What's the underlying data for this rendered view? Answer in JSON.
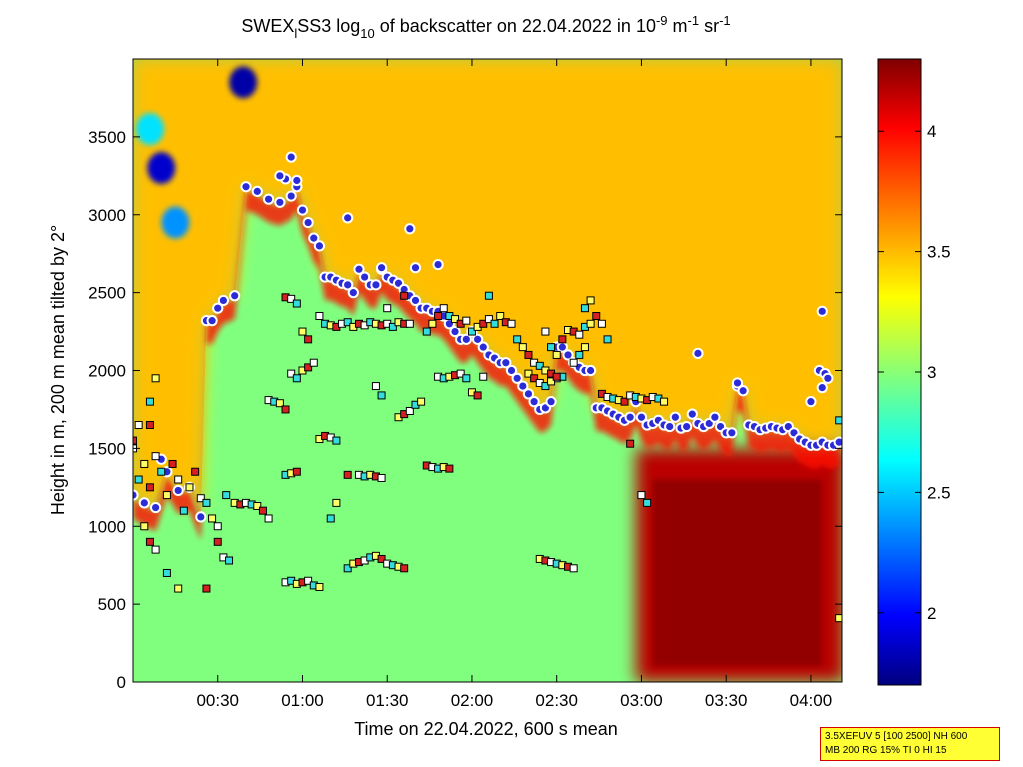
{
  "title": {
    "prefix": "SWEX",
    "sub_l": "l",
    "mid": "SS3 log",
    "sub_10": "10",
    "text": " of backscatter on 22.04.2022 in 10",
    "sup_exp": "-9",
    "unit_m": " m",
    "sup_m": "-1",
    "unit_sr": " sr",
    "sup_sr": "-1"
  },
  "info_box": {
    "line1": "3.5XEFUV 5 [100 2500] NH 600",
    "line2": "MB 200 RG 15% TI 0 HI 15"
  },
  "chart_data": {
    "type": "heatmap",
    "xlabel": "Time on 22.04.2022, 600 s mean",
    "ylabel": "Height in m, 200 m mean tilted by 2°",
    "x_ticks": [
      "00:30",
      "01:00",
      "01:30",
      "02:00",
      "02:30",
      "03:00",
      "03:30",
      "04:00"
    ],
    "x_tick_minutes": [
      30,
      60,
      90,
      120,
      150,
      180,
      210,
      240
    ],
    "xlim_minutes": [
      0,
      251
    ],
    "y_ticks": [
      "0",
      "500",
      "1000",
      "1500",
      "2000",
      "2500",
      "3000",
      "3500"
    ],
    "y_tick_values": [
      0,
      500,
      1000,
      1500,
      2000,
      2500,
      3000,
      3500
    ],
    "ylim": [
      0,
      4000
    ],
    "colorbar": {
      "ticks": [
        "2",
        "2.5",
        "3",
        "3.5",
        "4"
      ],
      "tick_values": [
        2,
        2.5,
        3,
        3.5,
        4
      ],
      "range": [
        1.7,
        4.3
      ],
      "colormap": "jet"
    },
    "marker_colors": {
      "layer_fill": "#2b2bd8",
      "layer_edge": "#ffffff",
      "square_fill": [
        "#ffffff",
        "#33dddd",
        "#ffff66",
        "#d42020"
      ],
      "square_edge": "#000000"
    },
    "features": {
      "background_level": 3.0,
      "upper_level": 3.4,
      "red_region": {
        "minutes": [
          178,
          252
        ],
        "height": [
          0,
          1500
        ],
        "level": 4.15
      },
      "blue_patches": [
        {
          "minutes": 10,
          "height": 3300,
          "level": 1.9
        },
        {
          "minutes": 39,
          "height": 3850,
          "level": 1.8
        },
        {
          "minutes": 15,
          "height": 2950,
          "level": 2.4
        },
        {
          "minutes": 6,
          "height": 3550,
          "level": 2.6
        }
      ]
    },
    "layer_series": [
      [
        0,
        1200
      ],
      [
        4,
        1150
      ],
      [
        8,
        1120
      ],
      [
        12,
        1350
      ],
      [
        16,
        1230
      ],
      [
        20,
        1250
      ],
      [
        24,
        1060
      ],
      [
        26,
        2320
      ],
      [
        28,
        2320
      ],
      [
        30,
        2400
      ],
      [
        32,
        2450
      ],
      [
        36,
        2480
      ],
      [
        40,
        3180
      ],
      [
        44,
        3150
      ],
      [
        48,
        3100
      ],
      [
        52,
        3080
      ],
      [
        56,
        3120
      ],
      [
        58,
        3180
      ],
      [
        60,
        3030
      ],
      [
        62,
        2950
      ],
      [
        64,
        2850
      ],
      [
        66,
        2800
      ],
      [
        68,
        2600
      ],
      [
        70,
        2600
      ],
      [
        72,
        2580
      ],
      [
        74,
        2560
      ],
      [
        76,
        2550
      ],
      [
        78,
        2500
      ],
      [
        80,
        2650
      ],
      [
        82,
        2600
      ],
      [
        84,
        2550
      ],
      [
        86,
        2550
      ],
      [
        88,
        2650
      ],
      [
        90,
        2600
      ],
      [
        92,
        2580
      ],
      [
        94,
        2560
      ],
      [
        96,
        2520
      ],
      [
        98,
        2480
      ],
      [
        100,
        2450
      ],
      [
        102,
        2400
      ],
      [
        104,
        2400
      ],
      [
        106,
        2380
      ],
      [
        108,
        2380
      ],
      [
        110,
        2350
      ],
      [
        112,
        2300
      ],
      [
        114,
        2250
      ],
      [
        116,
        2200
      ],
      [
        118,
        2200
      ],
      [
        120,
        2250
      ],
      [
        122,
        2200
      ],
      [
        124,
        2150
      ],
      [
        126,
        2100
      ],
      [
        128,
        2080
      ],
      [
        130,
        2050
      ],
      [
        132,
        2050
      ],
      [
        134,
        2000
      ],
      [
        136,
        1950
      ],
      [
        138,
        1900
      ],
      [
        140,
        1850
      ],
      [
        142,
        1800
      ],
      [
        144,
        1750
      ],
      [
        146,
        1760
      ],
      [
        148,
        1800
      ],
      [
        150,
        2150
      ],
      [
        152,
        2150
      ],
      [
        154,
        2100
      ],
      [
        156,
        2050
      ],
      [
        158,
        2020
      ],
      [
        160,
        2000
      ],
      [
        162,
        2000
      ],
      [
        164,
        1760
      ],
      [
        166,
        1760
      ],
      [
        168,
        1740
      ],
      [
        170,
        1720
      ],
      [
        172,
        1700
      ],
      [
        174,
        1680
      ],
      [
        176,
        1700
      ],
      [
        178,
        1800
      ],
      [
        180,
        1700
      ],
      [
        182,
        1650
      ],
      [
        184,
        1660
      ],
      [
        186,
        1680
      ],
      [
        188,
        1650
      ],
      [
        190,
        1640
      ],
      [
        192,
        1700
      ],
      [
        194,
        1630
      ],
      [
        196,
        1640
      ],
      [
        198,
        1720
      ],
      [
        200,
        1660
      ],
      [
        202,
        1640
      ],
      [
        204,
        1660
      ],
      [
        206,
        1700
      ],
      [
        208,
        1640
      ],
      [
        210,
        1600
      ],
      [
        212,
        1600
      ],
      [
        214,
        1900
      ],
      [
        216,
        1870
      ],
      [
        218,
        1650
      ],
      [
        220,
        1640
      ],
      [
        222,
        1620
      ],
      [
        224,
        1630
      ],
      [
        226,
        1640
      ],
      [
        228,
        1630
      ],
      [
        230,
        1620
      ],
      [
        232,
        1640
      ],
      [
        234,
        1600
      ],
      [
        236,
        1560
      ],
      [
        238,
        1540
      ],
      [
        240,
        1520
      ],
      [
        242,
        1520
      ],
      [
        244,
        1540
      ],
      [
        246,
        1520
      ],
      [
        248,
        1520
      ],
      [
        250,
        1540
      ]
    ],
    "extra_layer_points": [
      [
        56,
        3370
      ],
      [
        54,
        3230
      ],
      [
        52,
        3250
      ],
      [
        58,
        3220
      ],
      [
        76,
        2980
      ],
      [
        98,
        2910
      ],
      [
        88,
        2660
      ],
      [
        100,
        2660
      ],
      [
        108,
        2680
      ],
      [
        244,
        2380
      ],
      [
        243,
        2000
      ],
      [
        245,
        1980
      ],
      [
        240,
        1800
      ],
      [
        244,
        1890
      ],
      [
        246,
        1950
      ],
      [
        200,
        2110
      ],
      [
        214,
        1920
      ],
      [
        10,
        1430
      ]
    ],
    "square_points": [
      [
        0,
        1500
      ],
      [
        2,
        1300
      ],
      [
        4,
        1400
      ],
      [
        6,
        1250
      ],
      [
        8,
        1450
      ],
      [
        10,
        1350
      ],
      [
        12,
        1200
      ],
      [
        14,
        1400
      ],
      [
        16,
        1300
      ],
      [
        18,
        1100
      ],
      [
        20,
        1250
      ],
      [
        22,
        1350
      ],
      [
        24,
        1180
      ],
      [
        26,
        1150
      ],
      [
        28,
        1050
      ],
      [
        30,
        900
      ],
      [
        32,
        800
      ],
      [
        34,
        780
      ],
      [
        4,
        1000
      ],
      [
        6,
        900
      ],
      [
        8,
        850
      ],
      [
        12,
        700
      ],
      [
        16,
        600
      ],
      [
        26,
        600
      ],
      [
        30,
        1000
      ],
      [
        33,
        1200
      ],
      [
        36,
        1150
      ],
      [
        38,
        1140
      ],
      [
        40,
        1150
      ],
      [
        42,
        1140
      ],
      [
        44,
        1130
      ],
      [
        46,
        1100
      ],
      [
        48,
        1050
      ],
      [
        6,
        1800
      ],
      [
        8,
        1950
      ],
      [
        6,
        1650
      ],
      [
        48,
        1810
      ],
      [
        50,
        1800
      ],
      [
        52,
        1790
      ],
      [
        54,
        1750
      ],
      [
        56,
        1980
      ],
      [
        58,
        1950
      ],
      [
        60,
        2000
      ],
      [
        62,
        2020
      ],
      [
        64,
        2050
      ],
      [
        54,
        1330
      ],
      [
        56,
        1340
      ],
      [
        58,
        1350
      ],
      [
        54,
        640
      ],
      [
        56,
        650
      ],
      [
        58,
        630
      ],
      [
        60,
        640
      ],
      [
        62,
        650
      ],
      [
        64,
        620
      ],
      [
        66,
        610
      ],
      [
        54,
        2470
      ],
      [
        56,
        2460
      ],
      [
        58,
        2430
      ],
      [
        66,
        1560
      ],
      [
        68,
        1580
      ],
      [
        70,
        1570
      ],
      [
        72,
        1550
      ],
      [
        60,
        2250
      ],
      [
        62,
        2200
      ],
      [
        66,
        2350
      ],
      [
        68,
        2300
      ],
      [
        70,
        2290
      ],
      [
        72,
        2280
      ],
      [
        74,
        2300
      ],
      [
        76,
        2310
      ],
      [
        78,
        2280
      ],
      [
        80,
        2300
      ],
      [
        82,
        2290
      ],
      [
        84,
        2310
      ],
      [
        86,
        2300
      ],
      [
        88,
        2290
      ],
      [
        90,
        2300
      ],
      [
        92,
        2280
      ],
      [
        94,
        2310
      ],
      [
        96,
        2300
      ],
      [
        98,
        2300
      ],
      [
        70,
        1050
      ],
      [
        72,
        1150
      ],
      [
        76,
        1330
      ],
      [
        80,
        1330
      ],
      [
        82,
        1320
      ],
      [
        84,
        1330
      ],
      [
        86,
        1320
      ],
      [
        88,
        1310
      ],
      [
        76,
        730
      ],
      [
        78,
        760
      ],
      [
        80,
        770
      ],
      [
        82,
        780
      ],
      [
        84,
        800
      ],
      [
        86,
        810
      ],
      [
        88,
        790
      ],
      [
        90,
        760
      ],
      [
        92,
        750
      ],
      [
        94,
        740
      ],
      [
        96,
        730
      ],
      [
        86,
        1900
      ],
      [
        88,
        1840
      ],
      [
        94,
        1700
      ],
      [
        96,
        1720
      ],
      [
        98,
        1740
      ],
      [
        100,
        1780
      ],
      [
        102,
        1800
      ],
      [
        104,
        1390
      ],
      [
        106,
        1380
      ],
      [
        108,
        1370
      ],
      [
        110,
        1380
      ],
      [
        112,
        1370
      ],
      [
        108,
        1960
      ],
      [
        110,
        1950
      ],
      [
        112,
        1960
      ],
      [
        114,
        1970
      ],
      [
        116,
        1980
      ],
      [
        118,
        1950
      ],
      [
        120,
        1860
      ],
      [
        122,
        1840
      ],
      [
        124,
        1960
      ],
      [
        104,
        2250
      ],
      [
        106,
        2300
      ],
      [
        108,
        2350
      ],
      [
        110,
        2400
      ],
      [
        112,
        2350
      ],
      [
        114,
        2330
      ],
      [
        116,
        2300
      ],
      [
        118,
        2320
      ],
      [
        120,
        2250
      ],
      [
        122,
        2280
      ],
      [
        124,
        2300
      ],
      [
        126,
        2330
      ],
      [
        128,
        2300
      ],
      [
        130,
        2350
      ],
      [
        132,
        2310
      ],
      [
        134,
        2300
      ],
      [
        136,
        2200
      ],
      [
        138,
        2150
      ],
      [
        140,
        2100
      ],
      [
        142,
        2050
      ],
      [
        144,
        2030
      ],
      [
        146,
        2000
      ],
      [
        148,
        1980
      ],
      [
        150,
        1950
      ],
      [
        152,
        1960
      ],
      [
        154,
        2260
      ],
      [
        156,
        2250
      ],
      [
        158,
        2230
      ],
      [
        160,
        2280
      ],
      [
        162,
        2300
      ],
      [
        164,
        2350
      ],
      [
        166,
        2300
      ],
      [
        168,
        2200
      ],
      [
        140,
        1980
      ],
      [
        142,
        1950
      ],
      [
        144,
        1920
      ],
      [
        146,
        1900
      ],
      [
        148,
        1930
      ],
      [
        150,
        1960
      ],
      [
        146,
        2250
      ],
      [
        148,
        2150
      ],
      [
        150,
        2100
      ],
      [
        152,
        2200
      ],
      [
        156,
        2050
      ],
      [
        158,
        2100
      ],
      [
        160,
        2150
      ],
      [
        166,
        1850
      ],
      [
        168,
        1830
      ],
      [
        170,
        1820
      ],
      [
        172,
        1810
      ],
      [
        174,
        1800
      ],
      [
        176,
        1840
      ],
      [
        178,
        1830
      ],
      [
        180,
        1820
      ],
      [
        182,
        1810
      ],
      [
        184,
        1830
      ],
      [
        186,
        1820
      ],
      [
        188,
        1800
      ],
      [
        176,
        1530
      ],
      [
        180,
        1200
      ],
      [
        182,
        1150
      ],
      [
        144,
        790
      ],
      [
        146,
        780
      ],
      [
        148,
        770
      ],
      [
        150,
        760
      ],
      [
        152,
        750
      ],
      [
        154,
        740
      ],
      [
        156,
        730
      ],
      [
        250,
        1680
      ],
      [
        250,
        410
      ],
      [
        0,
        1550
      ],
      [
        2,
        1650
      ],
      [
        160,
        2400
      ],
      [
        162,
        2450
      ],
      [
        96,
        2480
      ],
      [
        90,
        2400
      ],
      [
        126,
        2480
      ]
    ]
  }
}
